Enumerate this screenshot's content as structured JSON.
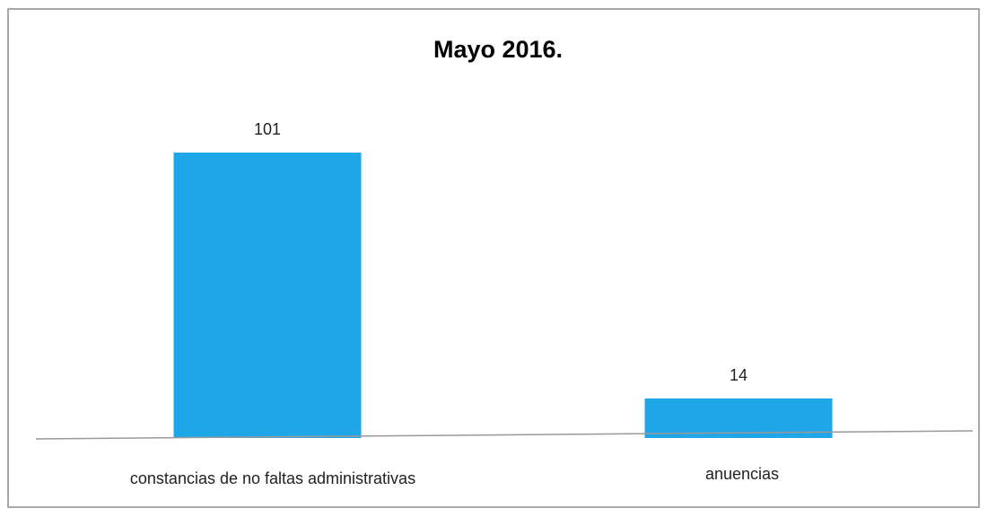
{
  "chart_data": {
    "type": "bar",
    "title": "Mayo 2016.",
    "xlabel": "",
    "ylabel": "",
    "categories": [
      "constancias de no faltas administrativas",
      "anuencias"
    ],
    "values": [
      101,
      14
    ],
    "data_labels": [
      "101",
      "14"
    ],
    "ylim": [
      0,
      101
    ],
    "grid": false,
    "legend": "none",
    "bar_color": "#1ea7e8",
    "axis_color": "#9a9a9a",
    "frame_color": "#8c8c8c"
  }
}
